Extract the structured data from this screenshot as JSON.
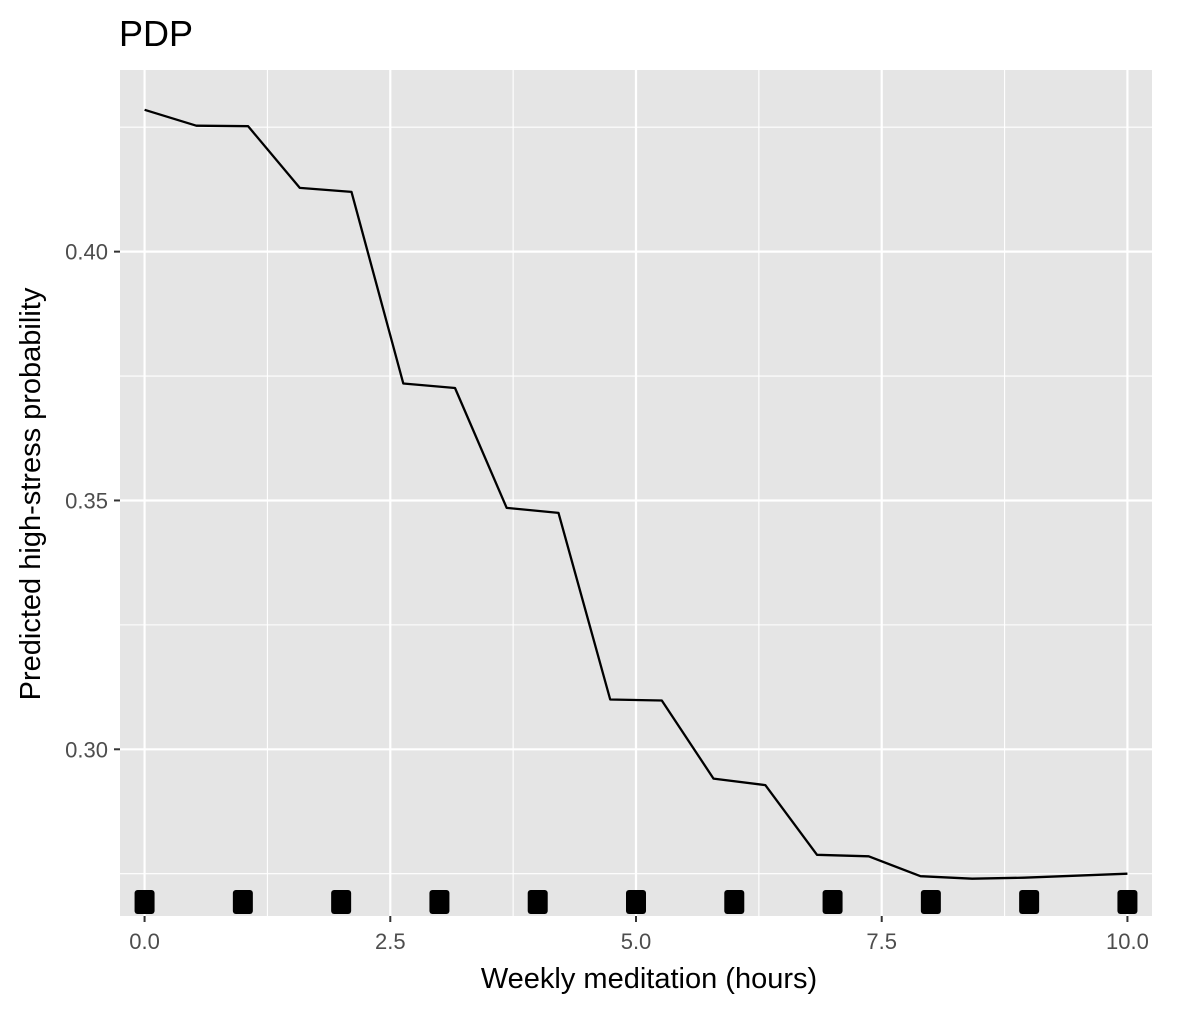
{
  "chart_data": {
    "type": "line",
    "title": "PDP",
    "xlabel": "Weekly meditation (hours)",
    "ylabel": "Predicted high-stress probability",
    "xlim": [
      -0.25,
      10.25
    ],
    "ylim": [
      0.2665,
      0.4365
    ],
    "x_ticks": [
      0.0,
      2.5,
      5.0,
      7.5,
      10.0
    ],
    "x_tick_labels": [
      "0.0",
      "2.5",
      "5.0",
      "7.5",
      "10.0"
    ],
    "y_ticks": [
      0.3,
      0.35,
      0.4
    ],
    "y_tick_labels": [
      "0.30",
      "0.35",
      "0.40"
    ],
    "grid": true,
    "background": "#e5e5e5",
    "grid_color": "#ffffff",
    "line_color": "#000000",
    "rug_color": "#000000",
    "series": [
      {
        "x": [
          0.0,
          0.526,
          1.053,
          1.579,
          2.105,
          2.632,
          3.158,
          3.684,
          4.211,
          4.737,
          5.263,
          5.789,
          6.316,
          6.842,
          7.368,
          7.895,
          8.421,
          8.947,
          9.474,
          10.0
        ],
        "values": [
          0.4285,
          0.4253,
          0.4252,
          0.4128,
          0.412,
          0.3735,
          0.3726,
          0.3485,
          0.3475,
          0.31,
          0.3098,
          0.2941,
          0.2928,
          0.2788,
          0.2785,
          0.2745,
          0.274,
          0.2742,
          0.2746,
          0.275
        ]
      }
    ],
    "rug_x": [
      0,
      1,
      2,
      3,
      4,
      5,
      6,
      7,
      8,
      9,
      10
    ]
  }
}
